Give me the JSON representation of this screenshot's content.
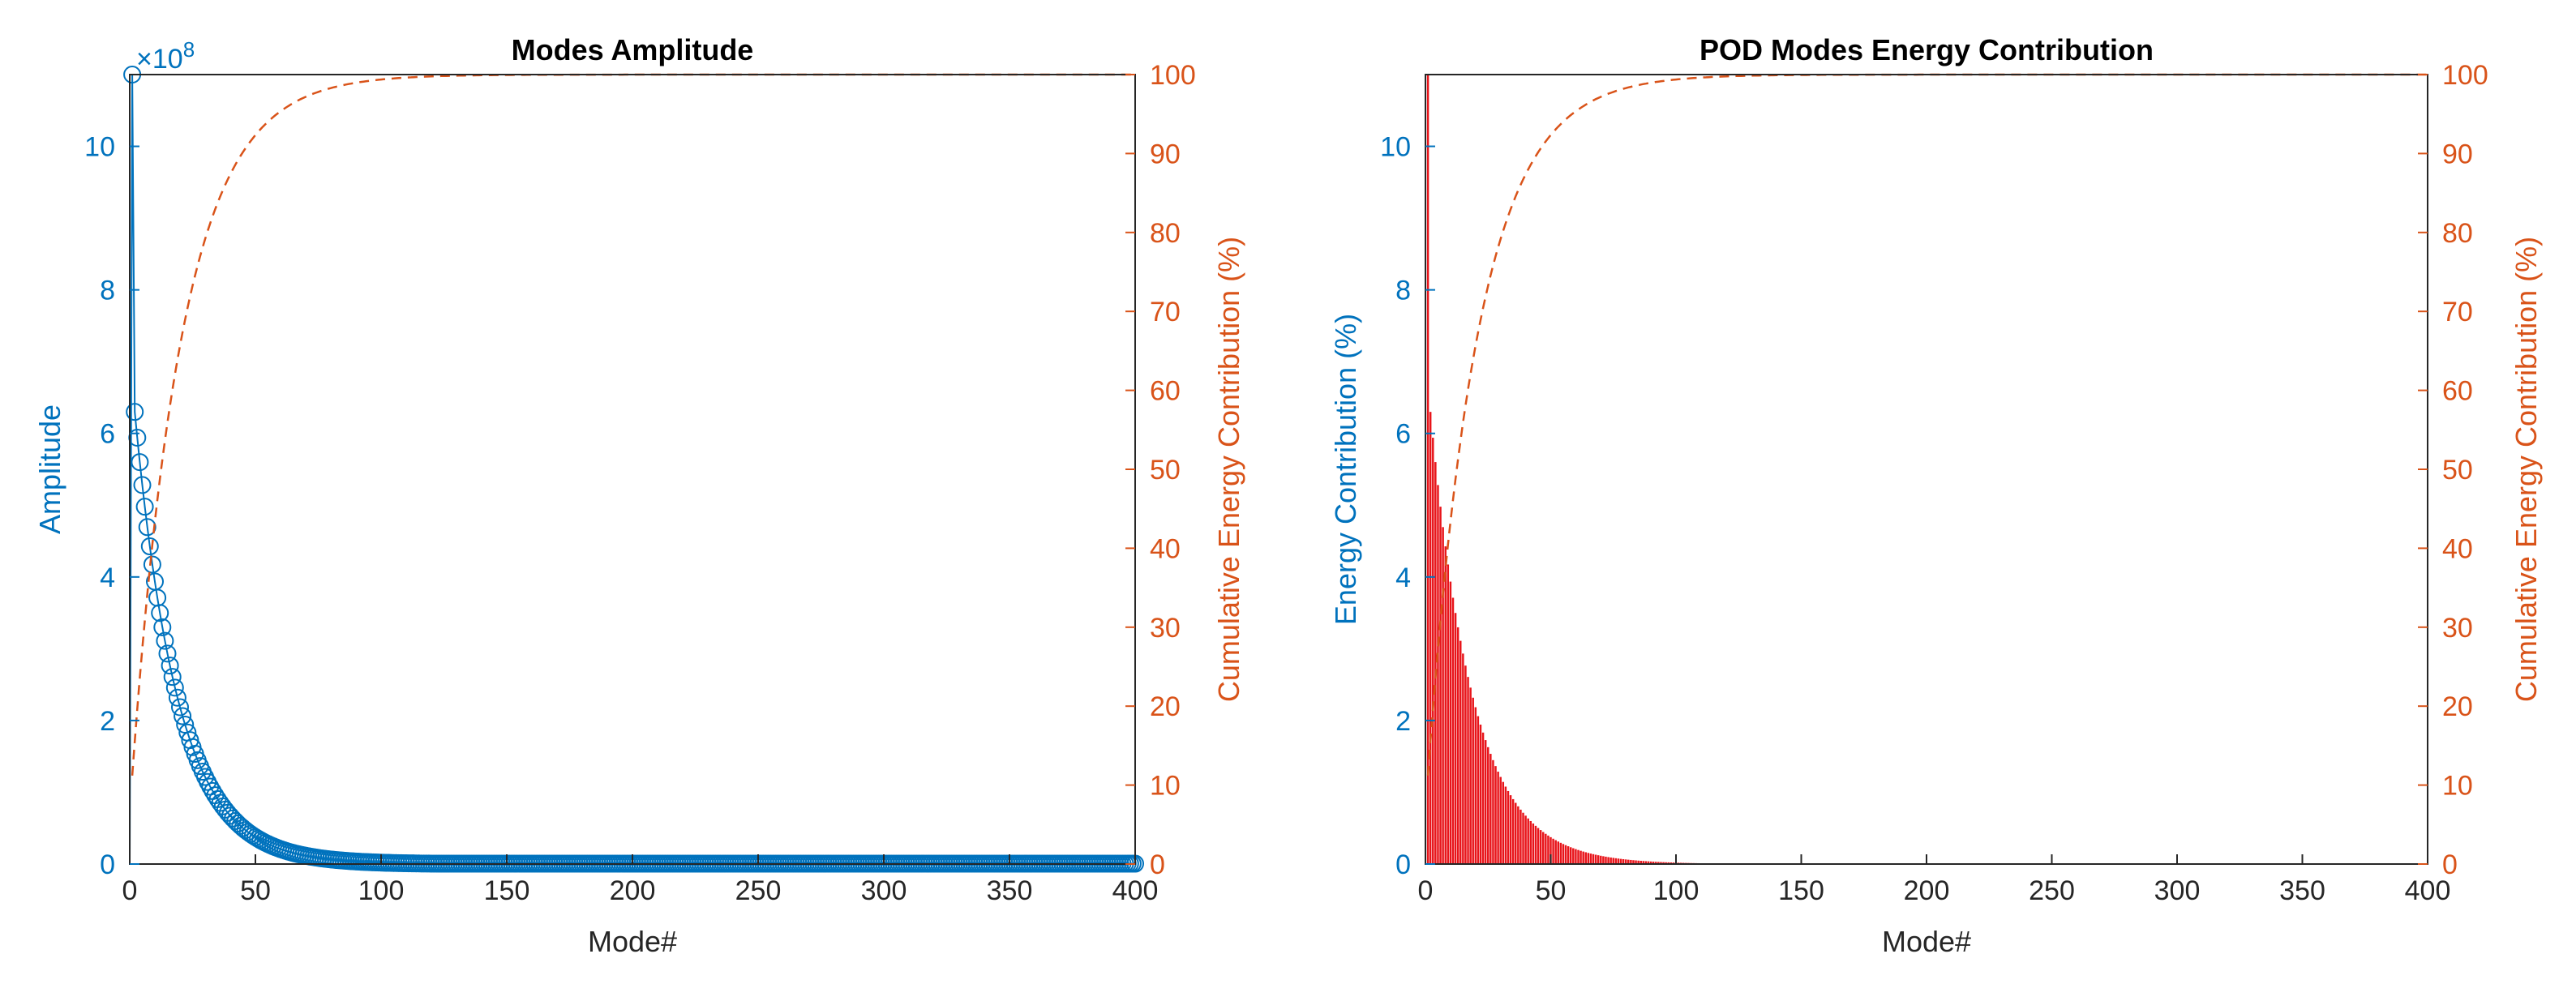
{
  "colors": {
    "left_axis": "#0072BD",
    "right_axis": "#D95319",
    "bar_fill": "#E8141A",
    "frame": "#262626"
  },
  "chart_data": [
    {
      "type": "line",
      "title": "Modes Amplitude",
      "xlabel": "Mode#",
      "ylabel": "Amplitude",
      "y2label": "Cumulative Energy Contribution (%)",
      "exponent_label": "×10",
      "exponent_power": "8",
      "xlim": [
        0,
        400
      ],
      "ylim": [
        0,
        11.0
      ],
      "y2lim": [
        0,
        100
      ],
      "xticks": [
        0,
        50,
        100,
        150,
        200,
        250,
        300,
        350,
        400
      ],
      "yticks": [
        0,
        2,
        4,
        6,
        8,
        10
      ],
      "y2ticks": [
        0,
        10,
        20,
        30,
        40,
        50,
        60,
        70,
        80,
        90,
        100
      ],
      "series": [
        {
          "name": "Amplitude (×10^8)",
          "axis": "left",
          "style": "solid line with circle markers",
          "model": "decay",
          "peak": 11.1,
          "second": 6.3,
          "tau": 17,
          "floor": 0.005,
          "n_modes": 400
        },
        {
          "name": "Cumulative Energy Contribution (%)",
          "axis": "right",
          "style": "dashed",
          "model": "cumulative",
          "start": 11.2,
          "tau": 20,
          "ceiling": 100
        }
      ]
    },
    {
      "type": "bar",
      "title": "POD Modes Energy Contribution",
      "xlabel": "Mode#",
      "ylabel": "Energy Contribution (%)",
      "y2label": "Cumulative Energy Contribution (%)",
      "xlim": [
        0,
        400
      ],
      "ylim": [
        0,
        11.0
      ],
      "y2lim": [
        0,
        100
      ],
      "xticks": [
        0,
        50,
        100,
        150,
        200,
        250,
        300,
        350,
        400
      ],
      "yticks": [
        0,
        2,
        4,
        6,
        8,
        10
      ],
      "y2ticks": [
        0,
        10,
        20,
        30,
        40,
        50,
        60,
        70,
        80,
        90,
        100
      ],
      "series": [
        {
          "name": "Energy Contribution (%)",
          "axis": "left",
          "style": "bars",
          "model": "decay",
          "peak": 11.2,
          "second": 6.3,
          "tau": 17,
          "floor": 0.003,
          "n_modes": 400
        },
        {
          "name": "Cumulative Energy Contribution (%)",
          "axis": "right",
          "style": "dashed",
          "model": "cumulative",
          "start": 11.2,
          "tau": 20,
          "ceiling": 100
        }
      ]
    }
  ]
}
